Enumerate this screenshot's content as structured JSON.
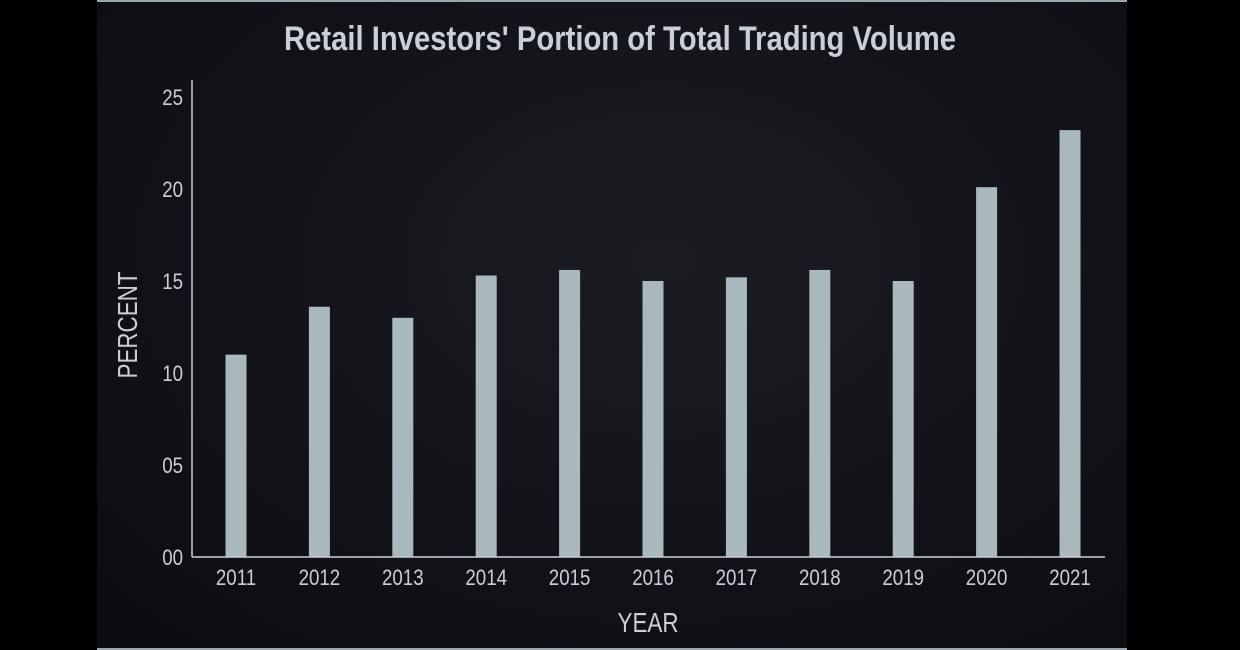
{
  "chart_data": {
    "type": "bar",
    "title": "Retail Investors' Portion of Total Trading Volume",
    "xlabel": "YEAR",
    "ylabel": "PERCENT",
    "categories": [
      "2011",
      "2012",
      "2013",
      "2014",
      "2015",
      "2016",
      "2017",
      "2018",
      "2019",
      "2020",
      "2021"
    ],
    "values": [
      11.0,
      13.6,
      13.0,
      15.3,
      15.6,
      15.0,
      15.2,
      15.6,
      15.0,
      20.1,
      23.2
    ],
    "ylim": [
      0,
      25
    ],
    "yticks": [
      "00",
      "05",
      "10",
      "15",
      "20",
      "25"
    ],
    "grid": false,
    "bar_color": "#a9b7bf",
    "background_color": "#111318",
    "text_color": "#c9d0d5"
  }
}
